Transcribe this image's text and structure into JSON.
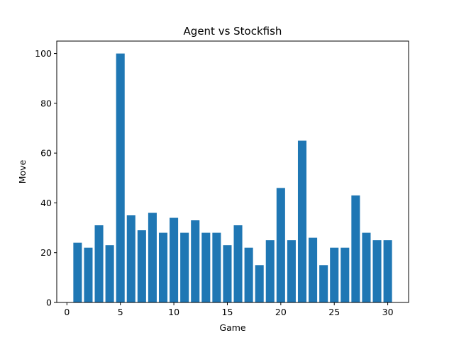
{
  "chart_data": {
    "type": "bar",
    "title": "Agent vs Stockfish",
    "xlabel": "Game",
    "ylabel": "Move",
    "x": [
      1,
      2,
      3,
      4,
      5,
      6,
      7,
      8,
      9,
      10,
      11,
      12,
      13,
      14,
      15,
      16,
      17,
      18,
      19,
      20,
      21,
      22,
      23,
      24,
      25,
      26,
      27,
      28,
      29,
      30
    ],
    "values": [
      24,
      22,
      31,
      23,
      100,
      35,
      29,
      36,
      28,
      34,
      28,
      33,
      28,
      28,
      23,
      31,
      22,
      15,
      25,
      46,
      25,
      65,
      26,
      15,
      22,
      22,
      43,
      28,
      25,
      25
    ],
    "xlim": [
      -0.95,
      31.95
    ],
    "ylim": [
      0,
      105
    ],
    "xticks": [
      0,
      5,
      10,
      15,
      20,
      25,
      30
    ],
    "yticks": [
      0,
      20,
      40,
      60,
      80,
      100
    ],
    "bar_color": "#1f77b4",
    "grid": false,
    "legend": "none"
  }
}
